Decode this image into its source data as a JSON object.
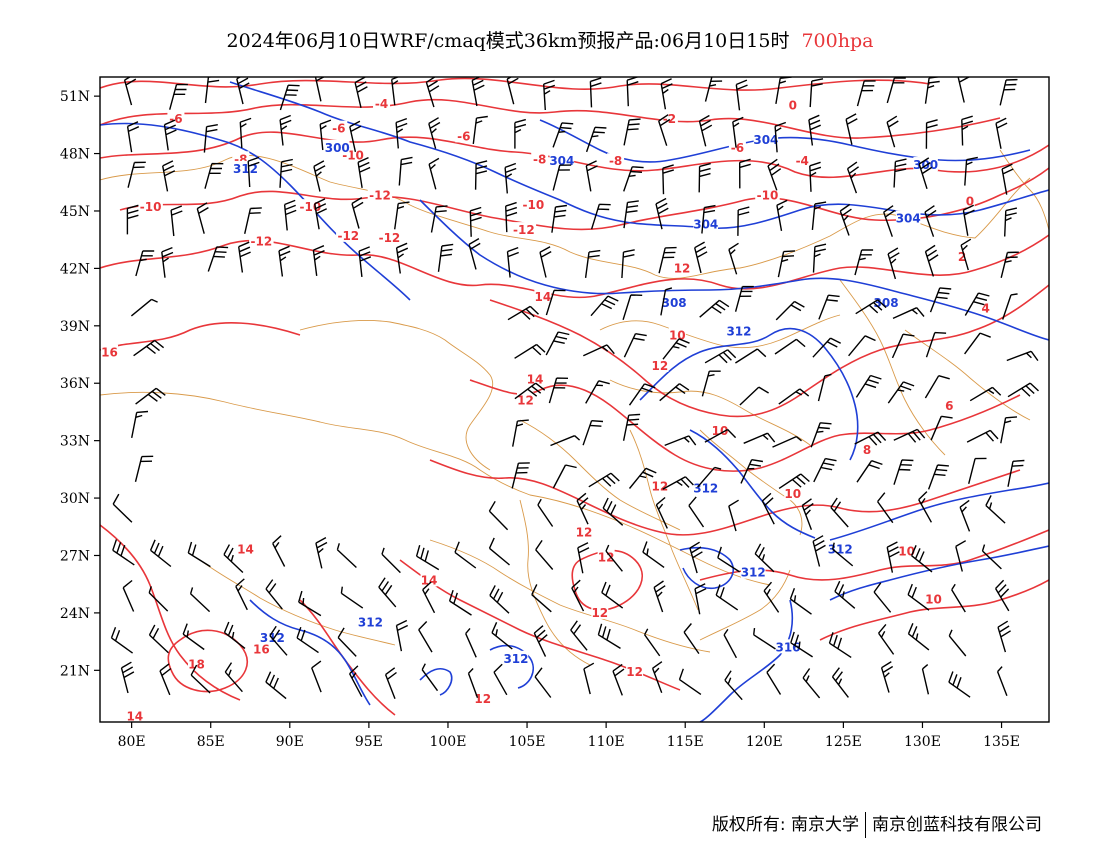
{
  "title": {
    "main": "2024年06月10日WRF/cmaq模式36km预报产品:06月10日15时",
    "level": "700hpa"
  },
  "axes": {
    "lat_labels": [
      "51N",
      "48N",
      "45N",
      "42N",
      "39N",
      "36N",
      "33N",
      "30N",
      "27N",
      "24N",
      "21N"
    ],
    "lat_values": [
      51,
      48,
      45,
      42,
      39,
      36,
      33,
      30,
      27,
      24,
      21
    ],
    "lon_labels": [
      "80E",
      "85E",
      "90E",
      "95E",
      "100E",
      "105E",
      "110E",
      "115E",
      "120E",
      "125E",
      "130E",
      "135E"
    ],
    "lon_values": [
      80,
      85,
      90,
      95,
      100,
      105,
      110,
      115,
      120,
      125,
      130,
      135
    ],
    "lon_range": [
      78,
      138
    ],
    "lat_range": [
      18.3,
      52
    ]
  },
  "colors": {
    "temperature": "#e8363a",
    "geopotential": "#1f3fd6",
    "border": "#d99a4a",
    "wind": "#000000"
  },
  "contour_labels": {
    "temperature": [
      {
        "text": "-4",
        "lon": 95.8,
        "lat": 50.6
      },
      {
        "text": "-2",
        "lon": 114,
        "lat": 49.8
      },
      {
        "text": "0",
        "lon": 121.8,
        "lat": 50.5
      },
      {
        "text": "-6",
        "lon": 82.8,
        "lat": 49.8
      },
      {
        "text": "-6",
        "lon": 93.1,
        "lat": 49.3
      },
      {
        "text": "-6",
        "lon": 101,
        "lat": 48.9
      },
      {
        "text": "-8",
        "lon": 86.9,
        "lat": 47.7
      },
      {
        "text": "-10",
        "lon": 94,
        "lat": 47.9
      },
      {
        "text": "-8",
        "lon": 110.6,
        "lat": 47.6
      },
      {
        "text": "-8",
        "lon": 105.8,
        "lat": 47.7
      },
      {
        "text": "-6",
        "lon": 118.3,
        "lat": 48.3
      },
      {
        "text": "-4",
        "lon": 122.4,
        "lat": 47.6
      },
      {
        "text": "-10",
        "lon": 81.2,
        "lat": 45.2
      },
      {
        "text": "-10",
        "lon": 91.3,
        "lat": 45.2
      },
      {
        "text": "-12",
        "lon": 95.7,
        "lat": 45.8
      },
      {
        "text": "-10",
        "lon": 105.4,
        "lat": 45.3
      },
      {
        "text": "-10",
        "lon": 120.2,
        "lat": 45.8
      },
      {
        "text": "0",
        "lon": 133,
        "lat": 45.5
      },
      {
        "text": "-12",
        "lon": 88.2,
        "lat": 43.4
      },
      {
        "text": "-12",
        "lon": 93.7,
        "lat": 43.7
      },
      {
        "text": "-12",
        "lon": 96.3,
        "lat": 43.6
      },
      {
        "text": "-12",
        "lon": 104.8,
        "lat": 44
      },
      {
        "text": "2",
        "lon": 132.5,
        "lat": 42.6
      },
      {
        "text": "12",
        "lon": 114.8,
        "lat": 42
      },
      {
        "text": "14",
        "lon": 106,
        "lat": 40.5
      },
      {
        "text": "4",
        "lon": 134,
        "lat": 39.9
      },
      {
        "text": "10",
        "lon": 114.5,
        "lat": 38.5
      },
      {
        "text": "16",
        "lon": 78.6,
        "lat": 37.6
      },
      {
        "text": "12",
        "lon": 113.4,
        "lat": 36.9
      },
      {
        "text": "14",
        "lon": 105.5,
        "lat": 36.2
      },
      {
        "text": "12",
        "lon": 104.9,
        "lat": 35.1
      },
      {
        "text": "6",
        "lon": 131.7,
        "lat": 34.8
      },
      {
        "text": "10",
        "lon": 117.2,
        "lat": 33.5
      },
      {
        "text": "8",
        "lon": 126.5,
        "lat": 32.5
      },
      {
        "text": "12",
        "lon": 113.4,
        "lat": 30.6
      },
      {
        "text": "10",
        "lon": 121.8,
        "lat": 30.2
      },
      {
        "text": "12",
        "lon": 108.6,
        "lat": 28.2
      },
      {
        "text": "12",
        "lon": 110,
        "lat": 26.9
      },
      {
        "text": "14",
        "lon": 87.2,
        "lat": 27.3
      },
      {
        "text": "14",
        "lon": 98.8,
        "lat": 25.7
      },
      {
        "text": "10",
        "lon": 129,
        "lat": 27.2
      },
      {
        "text": "10",
        "lon": 130.7,
        "lat": 24.7
      },
      {
        "text": "12",
        "lon": 109.6,
        "lat": 24
      },
      {
        "text": "18",
        "lon": 84.1,
        "lat": 21.3
      },
      {
        "text": "16",
        "lon": 88.2,
        "lat": 22.1
      },
      {
        "text": "12",
        "lon": 102.2,
        "lat": 19.5
      },
      {
        "text": "12",
        "lon": 111.8,
        "lat": 20.9
      },
      {
        "text": "14",
        "lon": 80.2,
        "lat": 18.6
      }
    ],
    "geopotential": [
      {
        "text": "304",
        "lon": 120.1,
        "lat": 48.7
      },
      {
        "text": "300",
        "lon": 93,
        "lat": 48.3
      },
      {
        "text": "304",
        "lon": 107.2,
        "lat": 47.6
      },
      {
        "text": "300",
        "lon": 130.2,
        "lat": 47.4
      },
      {
        "text": "312",
        "lon": 87.2,
        "lat": 47.2
      },
      {
        "text": "304",
        "lon": 116.3,
        "lat": 44.3
      },
      {
        "text": "304",
        "lon": 129.1,
        "lat": 44.6
      },
      {
        "text": "308",
        "lon": 114.3,
        "lat": 40.2
      },
      {
        "text": "308",
        "lon": 127.7,
        "lat": 40.2
      },
      {
        "text": "312",
        "lon": 118.4,
        "lat": 38.7
      },
      {
        "text": "312",
        "lon": 116.3,
        "lat": 30.5
      },
      {
        "text": "312",
        "lon": 124.8,
        "lat": 27.3
      },
      {
        "text": "312",
        "lon": 119.3,
        "lat": 26.1
      },
      {
        "text": "312",
        "lon": 95.1,
        "lat": 23.5
      },
      {
        "text": "312",
        "lon": 88.9,
        "lat": 22.7
      },
      {
        "text": "312",
        "lon": 104.3,
        "lat": 21.6
      },
      {
        "text": "316",
        "lon": 121.5,
        "lat": 22.2
      }
    ]
  },
  "footer": {
    "copyright": "版权所有: 南京大学",
    "company": "南京创蓝科技有限公司"
  }
}
